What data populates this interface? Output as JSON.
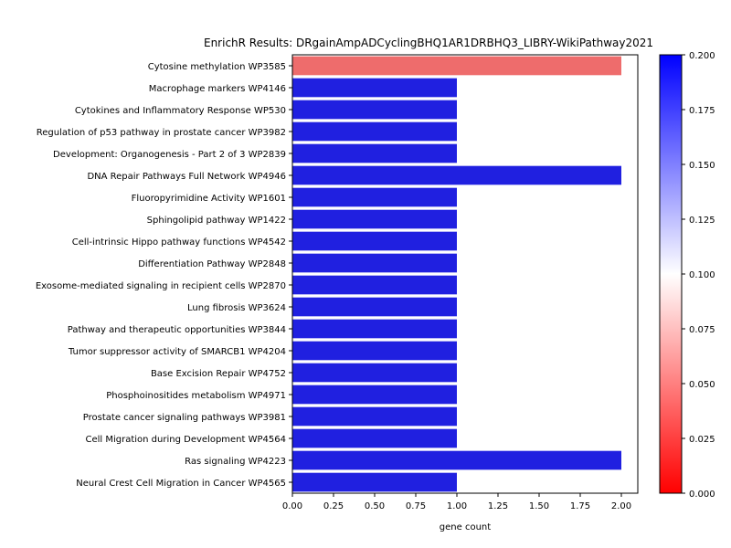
{
  "chart_data": {
    "type": "bar",
    "orientation": "horizontal",
    "title": "EnrichR Results: DRgainAmpADCyclingBHQ1AR1DRBHQ3_LIBRY-WikiPathway2021",
    "xlabel": "gene count",
    "ylabel": "",
    "xlim": [
      0,
      2.1
    ],
    "xticks": [
      "0.00",
      "0.25",
      "0.50",
      "0.75",
      "1.00",
      "1.25",
      "1.50",
      "1.75",
      "2.00"
    ],
    "grid": false,
    "categories": [
      "Cytosine methylation WP3585",
      "Macrophage markers WP4146",
      "Cytokines and Inflammatory Response WP530",
      "Regulation of p53 pathway in prostate cancer WP3982",
      "Development: Organogenesis - Part 2 of 3 WP2839",
      "DNA Repair Pathways Full Network WP4946",
      "Fluoropyrimidine Activity WP1601",
      "Sphingolipid pathway WP1422",
      "Cell-intrinsic Hippo pathway functions WP4542",
      "Differentiation Pathway WP2848",
      "Exosome-mediated signaling in recipient cells WP2870",
      "Lung fibrosis WP3624",
      "Pathway and therapeutic opportunities WP3844",
      "Tumor suppressor activity of SMARCB1 WP4204",
      "Base Excision Repair WP4752",
      "Phosphoinositides metabolism WP4971",
      "Prostate cancer signaling pathways WP3981",
      "Cell Migration during Development WP4564",
      "Ras signaling WP4223",
      "Neural Crest Cell Migration in Cancer WP4565"
    ],
    "values": [
      2,
      1,
      1,
      1,
      1,
      2,
      1,
      1,
      1,
      1,
      1,
      1,
      1,
      1,
      1,
      1,
      1,
      1,
      2,
      1
    ],
    "bar_colors": [
      "#ee6c6c",
      "#2020e0",
      "#2020e0",
      "#2020e0",
      "#2020e0",
      "#2020e0",
      "#2020e0",
      "#2020e0",
      "#2020e0",
      "#2020e0",
      "#2020e0",
      "#2020e0",
      "#2020e0",
      "#2020e0",
      "#2020e0",
      "#2020e0",
      "#2020e0",
      "#2020e0",
      "#2020e0",
      "#2020e0"
    ],
    "colorbar": {
      "min": 0,
      "max": 0.2,
      "ticks": [
        "0.000",
        "0.025",
        "0.050",
        "0.075",
        "0.100",
        "0.125",
        "0.150",
        "0.175",
        "0.200"
      ],
      "colors": [
        "#ff0000",
        "#ffffff",
        "#0000ff"
      ]
    }
  }
}
